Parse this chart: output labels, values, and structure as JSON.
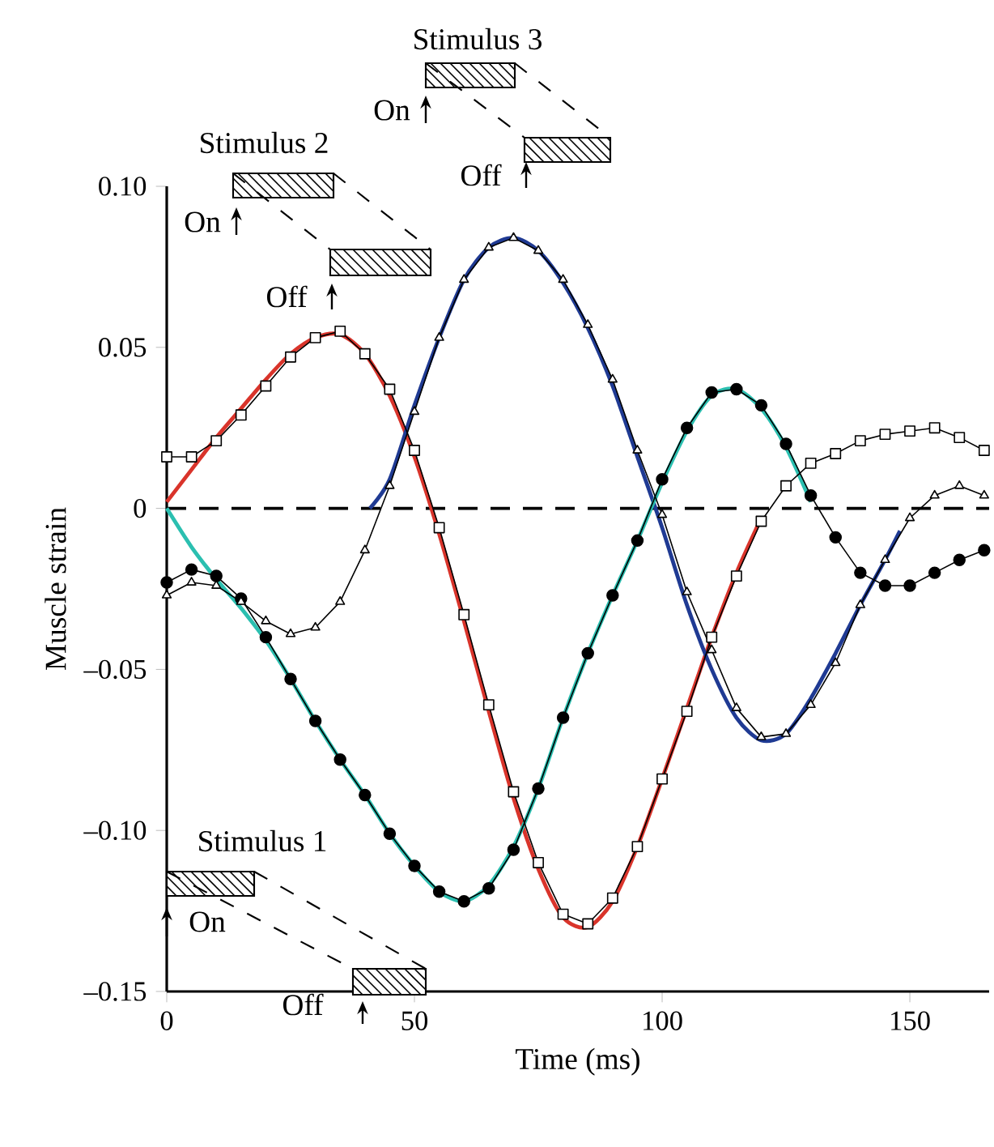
{
  "chart_data": {
    "type": "line",
    "xlabel": "Time (ms)",
    "ylabel": "Muscle strain",
    "xlim": [
      0,
      166
    ],
    "ylim": [
      -0.15,
      0.1
    ],
    "xticks": [
      0,
      50,
      100,
      150
    ],
    "yticks": [
      {
        "value": 0.1,
        "label": "0.10"
      },
      {
        "value": 0.05,
        "label": "0.05"
      },
      0,
      {
        "value": -0.05,
        "label": "–0.05"
      },
      {
        "value": -0.1,
        "label": "–0.10"
      },
      {
        "value": -0.15,
        "label": "–0.15"
      }
    ],
    "ref_lines": [
      {
        "axis": "y",
        "value": 0,
        "line_style": "dashed",
        "color": "#000000"
      }
    ],
    "annotations": [
      "Stimulus 1",
      "On",
      "Off",
      "Stimulus 2",
      "On",
      "Off",
      "Stimulus 3",
      "On",
      "Off"
    ],
    "series": [
      {
        "color": "#d9342b",
        "marker": "none",
        "x": [
          0,
          5,
          10,
          15,
          20,
          25,
          30,
          35,
          40,
          45,
          50,
          55,
          60,
          65,
          70,
          75,
          80,
          85,
          90,
          95,
          100,
          105,
          110,
          115,
          120
        ],
        "values": [
          0.002,
          0.012,
          0.022,
          0.031,
          0.04,
          0.048,
          0.053,
          0.054,
          0.048,
          0.035,
          0.016,
          -0.008,
          -0.035,
          -0.063,
          -0.09,
          -0.112,
          -0.127,
          -0.13,
          -0.122,
          -0.105,
          -0.084,
          -0.062,
          -0.04,
          -0.02,
          -0.003
        ]
      },
      {
        "color": "#1f3a93",
        "marker": "none",
        "x": [
          41,
          45,
          50,
          55,
          60,
          65,
          70,
          75,
          80,
          85,
          90,
          95,
          100,
          105,
          110,
          115,
          120,
          125,
          130,
          135,
          140,
          145,
          148
        ],
        "values": [
          0,
          0.009,
          0.032,
          0.053,
          0.071,
          0.081,
          0.084,
          0.08,
          0.07,
          0.056,
          0.038,
          0.016,
          -0.006,
          -0.03,
          -0.05,
          -0.065,
          -0.072,
          -0.07,
          -0.059,
          -0.045,
          -0.03,
          -0.016,
          -0.007
        ]
      },
      {
        "color": "#2bbfb0",
        "marker": "none",
        "x": [
          0,
          5,
          10,
          15,
          20,
          25,
          30,
          35,
          40,
          45,
          50,
          55,
          60,
          65,
          70,
          75,
          80,
          85,
          90,
          95,
          100,
          105,
          110,
          115,
          120,
          125,
          130
        ],
        "values": [
          0,
          -0.012,
          -0.022,
          -0.031,
          -0.041,
          -0.053,
          -0.066,
          -0.078,
          -0.089,
          -0.101,
          -0.111,
          -0.119,
          -0.122,
          -0.117,
          -0.105,
          -0.087,
          -0.065,
          -0.045,
          -0.027,
          -0.01,
          0.008,
          0.024,
          0.035,
          0.037,
          0.031,
          0.019,
          0.002
        ]
      },
      {
        "color": "#000000",
        "marker": "square",
        "x": [
          0,
          5,
          10,
          15,
          20,
          25,
          30,
          35,
          40,
          45,
          50,
          55,
          60,
          65,
          70,
          75,
          80,
          85,
          90,
          95,
          100,
          105,
          110,
          115,
          120,
          125,
          130,
          135,
          140,
          145,
          150,
          155,
          160,
          165
        ],
        "values": [
          0.016,
          0.016,
          0.021,
          0.029,
          0.038,
          0.047,
          0.053,
          0.055,
          0.048,
          0.037,
          0.018,
          -0.006,
          -0.033,
          -0.061,
          -0.088,
          -0.11,
          -0.126,
          -0.129,
          -0.121,
          -0.105,
          -0.084,
          -0.063,
          -0.04,
          -0.021,
          -0.004,
          0.007,
          0.014,
          0.017,
          0.021,
          0.023,
          0.024,
          0.025,
          0.022,
          0.018
        ]
      },
      {
        "color": "#000000",
        "marker": "circle",
        "x": [
          0,
          5,
          10,
          15,
          20,
          25,
          30,
          35,
          40,
          45,
          50,
          55,
          60,
          65,
          70,
          75,
          80,
          85,
          90,
          95,
          100,
          105,
          110,
          115,
          120,
          125,
          130,
          135,
          140,
          145,
          150,
          155,
          160,
          165
        ],
        "values": [
          -0.023,
          -0.019,
          -0.021,
          -0.028,
          -0.04,
          -0.053,
          -0.066,
          -0.078,
          -0.089,
          -0.101,
          -0.111,
          -0.119,
          -0.122,
          -0.118,
          -0.106,
          -0.087,
          -0.065,
          -0.045,
          -0.027,
          -0.01,
          0.009,
          0.025,
          0.036,
          0.037,
          0.032,
          0.02,
          0.004,
          -0.009,
          -0.02,
          -0.024,
          -0.024,
          -0.02,
          -0.016,
          -0.013
        ]
      },
      {
        "color": "#000000",
        "marker": "triangle",
        "x": [
          0,
          5,
          10,
          15,
          20,
          25,
          30,
          35,
          40,
          45,
          50,
          55,
          60,
          65,
          70,
          75,
          80,
          85,
          90,
          95,
          100,
          105,
          110,
          115,
          120,
          125,
          130,
          135,
          140,
          145,
          150,
          155,
          160,
          165
        ],
        "values": [
          -0.027,
          -0.023,
          -0.024,
          -0.029,
          -0.035,
          -0.039,
          -0.037,
          -0.029,
          -0.013,
          0.007,
          0.03,
          0.053,
          0.071,
          0.081,
          0.084,
          0.08,
          0.071,
          0.057,
          0.04,
          0.018,
          -0.002,
          -0.026,
          -0.044,
          -0.062,
          -0.071,
          -0.07,
          -0.061,
          -0.048,
          -0.03,
          -0.016,
          -0.003,
          0.004,
          0.007,
          0.004
        ]
      }
    ]
  }
}
